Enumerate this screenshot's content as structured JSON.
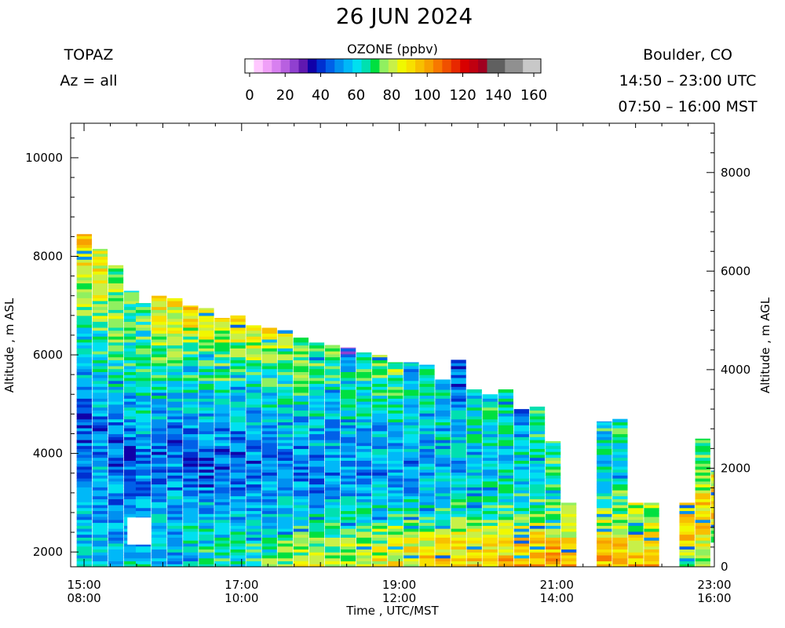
{
  "header": {
    "date": "26 JUN 2024",
    "instrument": "TOPAZ",
    "azimuth": "Az = all",
    "location": "Boulder, CO",
    "utc_range": "14:50 – 23:00 UTC",
    "mst_range": "07:50 – 16:00 MST"
  },
  "colorbar": {
    "title": "OZONE (ppbv)",
    "tick_labels": [
      "0",
      "20",
      "40",
      "60",
      "80",
      "100",
      "120",
      "140",
      "160"
    ],
    "colors": [
      "#ffffff",
      "#ffc8ff",
      "#f0a0f8",
      "#d880f0",
      "#b860e0",
      "#9040d0",
      "#6018b0",
      "#1000a8",
      "#0030d0",
      "#0060e8",
      "#0090f0",
      "#00b8f8",
      "#00e0f0",
      "#00e0b0",
      "#00e040",
      "#90f060",
      "#c8f048",
      "#f0f800",
      "#f8e000",
      "#f8c000",
      "#f8a000",
      "#f87800",
      "#f05000",
      "#e82800",
      "#d80000",
      "#c00010",
      "#a00020",
      "#606060",
      "#606060",
      "#909090",
      "#909090",
      "#c8c8c8",
      "#c8c8c8"
    ]
  },
  "chart_data": {
    "type": "heatmap",
    "title": "26 JUN 2024",
    "xlabel": "Time , UTC/MST",
    "ylabel_left": "Altitude , m ASL",
    "ylabel_right": "Altitude , m AGL",
    "x_ticks_utc": [
      "15:00",
      "17:00",
      "19:00",
      "21:00",
      "23:00"
    ],
    "x_ticks_mst": [
      "08:00",
      "10:00",
      "12:00",
      "14:00",
      "16:00"
    ],
    "y_left_ticks": [
      "2000",
      "4000",
      "6000",
      "8000",
      "10000"
    ],
    "y_right_ticks": [
      "0",
      "2000",
      "4000",
      "6000",
      "8000"
    ],
    "y_left_range": [
      1700,
      10700
    ],
    "y_right_offset": 1700,
    "x_range_hours_utc": [
      14.83,
      23.0
    ],
    "clim": [
      0,
      160
    ],
    "value_bins": [
      [
        15.0,
        1700,
        8450,
        [
          60,
          55,
          50,
          45,
          55,
          65,
          80,
          90
        ]
      ],
      [
        15.2,
        1700,
        8150,
        [
          60,
          55,
          55,
          45,
          60,
          70,
          80,
          85
        ]
      ],
      [
        15.4,
        1700,
        7820,
        [
          58,
          55,
          50,
          45,
          60,
          70,
          75,
          75
        ]
      ],
      [
        15.6,
        1700,
        7300,
        [
          60,
          55,
          45,
          45,
          60,
          65,
          70,
          70
        ]
      ],
      [
        15.75,
        1700,
        7050,
        [
          62,
          55,
          50,
          48,
          60,
          65,
          70,
          70
        ]
      ],
      [
        15.95,
        1700,
        7200,
        [
          60,
          58,
          50,
          45,
          58,
          68,
          80,
          88
        ]
      ],
      [
        16.15,
        1700,
        7150,
        [
          62,
          58,
          52,
          45,
          55,
          68,
          78,
          88
        ]
      ],
      [
        16.35,
        1700,
        7000,
        [
          62,
          58,
          50,
          45,
          55,
          65,
          75,
          92
        ]
      ],
      [
        16.55,
        1700,
        6950,
        [
          65,
          60,
          50,
          45,
          55,
          65,
          78,
          90
        ]
      ],
      [
        16.75,
        1700,
        6750,
        [
          65,
          60,
          50,
          45,
          55,
          65,
          75,
          88
        ]
      ],
      [
        16.95,
        1700,
        6800,
        [
          65,
          62,
          52,
          45,
          55,
          65,
          75,
          85
        ]
      ],
      [
        17.15,
        1700,
        6600,
        [
          68,
          62,
          52,
          48,
          55,
          62,
          75,
          85
        ]
      ],
      [
        17.35,
        1700,
        6550,
        [
          72,
          62,
          52,
          48,
          55,
          62,
          72,
          85
        ]
      ],
      [
        17.55,
        1700,
        6500,
        [
          75,
          65,
          55,
          48,
          55,
          62,
          72,
          82
        ]
      ],
      [
        17.75,
        1700,
        6350,
        [
          78,
          68,
          55,
          48,
          55,
          60,
          70,
          80
        ]
      ],
      [
        17.95,
        1700,
        6250,
        [
          80,
          68,
          55,
          48,
          55,
          60,
          70,
          75
        ]
      ],
      [
        18.15,
        1700,
        6200,
        [
          80,
          70,
          58,
          50,
          55,
          60,
          68,
          72
        ]
      ],
      [
        18.35,
        1700,
        6150,
        [
          80,
          70,
          58,
          50,
          55,
          60,
          68,
          30
        ]
      ],
      [
        18.55,
        1700,
        6050,
        [
          82,
          72,
          58,
          50,
          55,
          60,
          65,
          72
        ]
      ],
      [
        18.75,
        1700,
        6000,
        [
          85,
          75,
          60,
          52,
          55,
          60,
          68,
          78
        ]
      ],
      [
        18.95,
        1700,
        5850,
        [
          88,
          78,
          62,
          52,
          55,
          60,
          68,
          75
        ]
      ],
      [
        19.15,
        1700,
        5850,
        [
          88,
          80,
          62,
          52,
          55,
          60,
          65,
          55
        ]
      ],
      [
        19.35,
        1700,
        5800,
        [
          90,
          82,
          62,
          52,
          55,
          60,
          65,
          65
        ]
      ],
      [
        19.55,
        1700,
        5500,
        [
          90,
          85,
          65,
          55,
          55,
          60,
          62,
          62
        ]
      ],
      [
        19.75,
        1700,
        5900,
        [
          90,
          85,
          65,
          55,
          58,
          60,
          45,
          45
        ]
      ],
      [
        19.95,
        1700,
        5300,
        [
          92,
          88,
          68,
          58,
          58,
          62,
          65,
          65
        ]
      ],
      [
        20.15,
        1700,
        5200,
        [
          95,
          90,
          70,
          60,
          58,
          62,
          65,
          65
        ]
      ],
      [
        20.35,
        1700,
        5300,
        [
          95,
          90,
          72,
          62,
          60,
          62,
          65,
          65
        ]
      ],
      [
        20.55,
        1700,
        4900,
        [
          95,
          92,
          75,
          65,
          60,
          62,
          50,
          50
        ]
      ],
      [
        20.75,
        1700,
        4950,
        [
          98,
          92,
          78,
          68,
          62,
          65,
          65,
          65
        ]
      ],
      [
        20.95,
        1700,
        4250,
        [
          98,
          95,
          80,
          72,
          65,
          70,
          70,
          70
        ]
      ],
      [
        21.15,
        1700,
        3000,
        [
          100,
          98,
          90,
          85,
          80,
          80,
          80,
          80
        ]
      ]
    ],
    "value_bins_late": [
      [
        21.6,
        1700,
        4650,
        [
          95,
          92,
          80,
          70,
          62,
          62,
          62,
          62
        ]
      ],
      [
        21.8,
        1700,
        4700,
        [
          95,
          92,
          82,
          72,
          65,
          65,
          65,
          65
        ]
      ],
      [
        22.0,
        1700,
        3000,
        [
          95,
          92,
          88,
          85,
          80,
          80,
          80,
          80
        ]
      ],
      [
        22.2,
        1700,
        3000,
        [
          95,
          92,
          88,
          85,
          80,
          80,
          80,
          80
        ]
      ],
      [
        22.65,
        1700,
        3000,
        [
          70,
          78,
          85,
          90,
          90,
          90,
          90,
          90
        ]
      ],
      [
        22.85,
        1700,
        4300,
        [
          70,
          80,
          88,
          92,
          85,
          75,
          70,
          70
        ]
      ],
      [
        23.05,
        2200,
        3650,
        [
          72,
          80,
          88,
          92,
          90,
          88,
          85,
          85
        ]
      ]
    ],
    "gaps": [
      [
        15.55,
        15.85,
        2150,
        2700
      ]
    ]
  },
  "axis_labels": {
    "x": "Time , UTC/MST",
    "y_left": "Altitude , m ASL",
    "y_right": "Altitude , m AGL"
  }
}
